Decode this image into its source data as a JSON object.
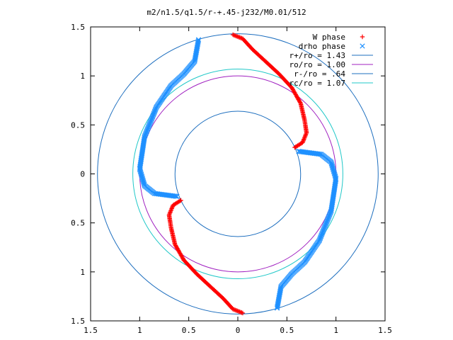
{
  "chart_data": {
    "type": "scatter",
    "title": "m2/n1.5/q1.5/r-+.45-j232/M0.01/512",
    "xlim": [
      -1.5,
      1.5
    ],
    "ylim": [
      -1.5,
      1.5
    ],
    "x_ticks": [
      -1.5,
      -1,
      -0.5,
      0,
      0.5,
      1,
      1.5
    ],
    "y_ticks": [
      -1.5,
      -1,
      -0.5,
      0,
      0.5,
      1,
      1.5
    ],
    "x_tick_labels": [
      "1.5",
      "1",
      "0.5",
      "0",
      "0.5",
      "1",
      "1.5"
    ],
    "y_tick_labels": [
      "1.5",
      "1",
      "0.5",
      "0",
      "0.5",
      "1",
      "1.5"
    ],
    "grid": false,
    "legend_position": "top-right",
    "series": [
      {
        "name": "W phase",
        "kind": "points",
        "marker": "plus",
        "color": "#ff0000",
        "segments": [
          [
            [
              -0.05,
              1.42
            ],
            [
              0.05,
              1.38
            ],
            [
              0.15,
              1.27
            ],
            [
              0.28,
              1.15
            ],
            [
              0.42,
              1.02
            ],
            [
              0.55,
              0.88
            ],
            [
              0.64,
              0.72
            ],
            [
              0.68,
              0.55
            ],
            [
              0.7,
              0.42
            ],
            [
              0.66,
              0.32
            ],
            [
              0.58,
              0.27
            ]
          ],
          [
            [
              0.05,
              -1.42
            ],
            [
              -0.05,
              -1.38
            ],
            [
              -0.15,
              -1.27
            ],
            [
              -0.28,
              -1.15
            ],
            [
              -0.42,
              -1.02
            ],
            [
              -0.55,
              -0.88
            ],
            [
              -0.64,
              -0.72
            ],
            [
              -0.68,
              -0.55
            ],
            [
              -0.7,
              -0.42
            ],
            [
              -0.66,
              -0.32
            ],
            [
              -0.58,
              -0.27
            ]
          ]
        ]
      },
      {
        "name": "drho phase",
        "kind": "points",
        "marker": "cross",
        "color": "#1e90ff",
        "segments": [
          [
            [
              -0.4,
              1.37
            ],
            [
              -0.44,
              1.15
            ],
            [
              -0.55,
              1.02
            ],
            [
              -0.68,
              0.9
            ],
            [
              -0.83,
              0.68
            ],
            [
              -0.95,
              0.38
            ],
            [
              -1.0,
              0.05
            ],
            [
              -0.95,
              -0.12
            ],
            [
              -0.85,
              -0.2
            ],
            [
              -0.62,
              -0.23
            ]
          ],
          [
            [
              0.4,
              -1.37
            ],
            [
              0.44,
              -1.15
            ],
            [
              0.55,
              -1.02
            ],
            [
              0.68,
              -0.9
            ],
            [
              0.83,
              -0.68
            ],
            [
              0.95,
              -0.38
            ],
            [
              1.0,
              -0.05
            ],
            [
              0.95,
              0.12
            ],
            [
              0.85,
              0.2
            ],
            [
              0.62,
              0.23
            ]
          ]
        ]
      },
      {
        "name": "r+/ro = 1.43",
        "kind": "circle",
        "radius": 1.43,
        "color": "#1e6fbf"
      },
      {
        "name": "ro/ro = 1.00",
        "kind": "circle",
        "radius": 1.0,
        "color": "#a020c0"
      },
      {
        "name": "r-/ro = .64",
        "kind": "circle",
        "radius": 0.64,
        "color": "#1e6fbf"
      },
      {
        "name": "rc/ro = 1.07",
        "kind": "circle",
        "radius": 1.07,
        "color": "#20c8c8"
      }
    ]
  }
}
